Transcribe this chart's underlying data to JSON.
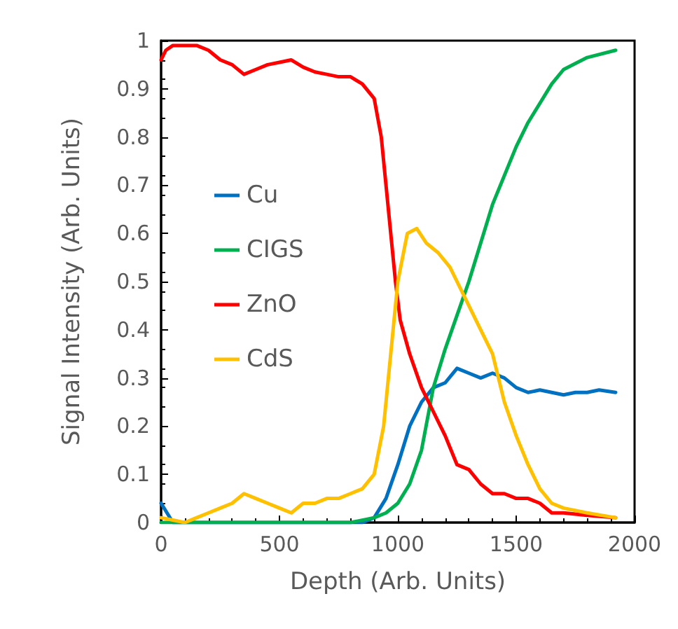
{
  "chart_data": {
    "type": "line",
    "xlabel": "Depth (Arb. Units)",
    "ylabel": "Signal Intensity (Arb. Units)",
    "xlim": [
      0,
      2000
    ],
    "xticks": [
      0,
      500,
      1000,
      1500,
      2000
    ],
    "ylim": [
      0,
      1
    ],
    "yticks": [
      0,
      0.1,
      0.2,
      0.3,
      0.4,
      0.5,
      0.6,
      0.7,
      0.8,
      0.9,
      1
    ],
    "grid": false,
    "legend": "left",
    "marker": "none",
    "line_style": "solid",
    "series": [
      {
        "name": "Cu",
        "color": "#0070c0",
        "x": [
          0,
          50,
          200,
          400,
          600,
          800,
          850,
          900,
          950,
          1000,
          1050,
          1100,
          1150,
          1200,
          1250,
          1300,
          1350,
          1400,
          1450,
          1500,
          1550,
          1600,
          1650,
          1700,
          1750,
          1800,
          1850,
          1920
        ],
        "values": [
          0.04,
          0.0,
          0.0,
          0.0,
          0.0,
          0.0,
          0.0,
          0.01,
          0.05,
          0.12,
          0.2,
          0.25,
          0.28,
          0.29,
          0.32,
          0.31,
          0.3,
          0.31,
          0.3,
          0.28,
          0.27,
          0.275,
          0.27,
          0.265,
          0.27,
          0.27,
          0.275,
          0.27
        ]
      },
      {
        "name": "CIGS",
        "color": "#00b050",
        "x": [
          0,
          200,
          400,
          600,
          800,
          900,
          950,
          1000,
          1050,
          1100,
          1150,
          1200,
          1250,
          1300,
          1350,
          1400,
          1450,
          1500,
          1550,
          1600,
          1650,
          1700,
          1800,
          1920
        ],
        "values": [
          0.0,
          0.0,
          0.0,
          0.0,
          0.0,
          0.01,
          0.02,
          0.04,
          0.08,
          0.15,
          0.28,
          0.36,
          0.43,
          0.5,
          0.58,
          0.66,
          0.72,
          0.78,
          0.83,
          0.87,
          0.91,
          0.94,
          0.965,
          0.98
        ]
      },
      {
        "name": "ZnO",
        "color": "#ff0000",
        "x": [
          0,
          20,
          50,
          100,
          150,
          200,
          250,
          300,
          350,
          400,
          450,
          500,
          550,
          600,
          650,
          700,
          750,
          800,
          850,
          900,
          930,
          960,
          990,
          1010,
          1050,
          1100,
          1150,
          1200,
          1250,
          1300,
          1350,
          1400,
          1450,
          1500,
          1550,
          1600,
          1650,
          1700,
          1800,
          1920
        ],
        "values": [
          0.96,
          0.98,
          0.99,
          0.99,
          0.99,
          0.98,
          0.96,
          0.95,
          0.93,
          0.94,
          0.95,
          0.955,
          0.96,
          0.945,
          0.935,
          0.93,
          0.925,
          0.925,
          0.91,
          0.88,
          0.8,
          0.65,
          0.5,
          0.42,
          0.35,
          0.28,
          0.23,
          0.18,
          0.12,
          0.11,
          0.08,
          0.06,
          0.06,
          0.05,
          0.05,
          0.04,
          0.02,
          0.02,
          0.015,
          0.01
        ]
      },
      {
        "name": "CdS",
        "color": "#ffc000",
        "x": [
          0,
          100,
          150,
          200,
          250,
          300,
          350,
          400,
          450,
          500,
          550,
          600,
          650,
          700,
          750,
          800,
          850,
          900,
          940,
          970,
          1000,
          1040,
          1080,
          1120,
          1170,
          1220,
          1250,
          1300,
          1350,
          1400,
          1450,
          1500,
          1550,
          1600,
          1650,
          1700,
          1800,
          1920
        ],
        "values": [
          0.01,
          0.0,
          0.01,
          0.02,
          0.03,
          0.04,
          0.06,
          0.05,
          0.04,
          0.03,
          0.02,
          0.04,
          0.04,
          0.05,
          0.05,
          0.06,
          0.07,
          0.1,
          0.2,
          0.35,
          0.5,
          0.6,
          0.61,
          0.58,
          0.56,
          0.53,
          0.5,
          0.45,
          0.4,
          0.35,
          0.25,
          0.18,
          0.12,
          0.07,
          0.04,
          0.03,
          0.02,
          0.01
        ]
      }
    ]
  }
}
